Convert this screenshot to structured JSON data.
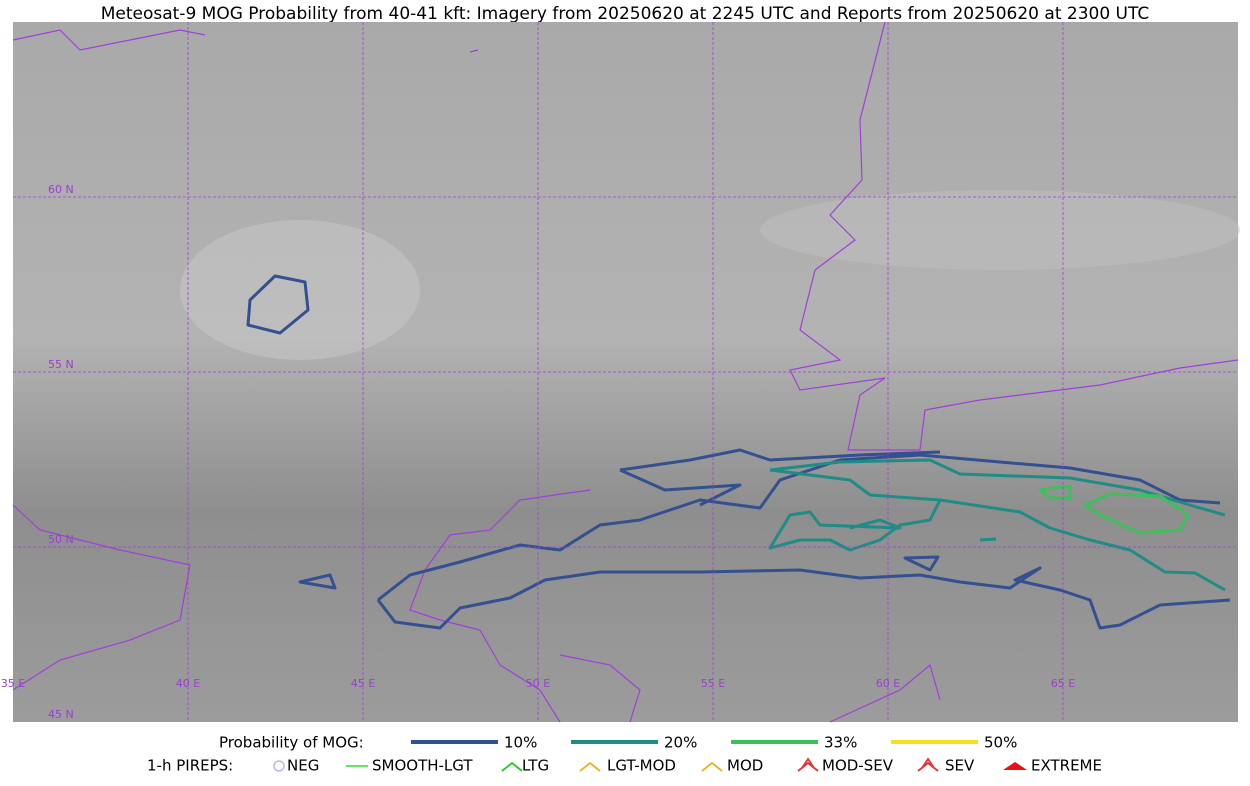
{
  "title": "Meteosat-9 MOG Probability from 40-41 kft: Imagery from 20250620 at 2245 UTC and Reports from 20250620 at 2300 UTC",
  "map": {
    "latitude_labels": [
      "60 N",
      "55 N",
      "50 N",
      "45 N"
    ],
    "longitude_labels": [
      "35 E",
      "40 E",
      "45 E",
      "50 E",
      "55 E",
      "60 E",
      "65 E"
    ]
  },
  "legend": {
    "mog_title": "Probability of MOG:",
    "mog_items": [
      {
        "label": "10%",
        "color": "#34508f"
      },
      {
        "label": "20%",
        "color": "#1f8c85"
      },
      {
        "label": "33%",
        "color": "#3cc05a"
      },
      {
        "label": "50%",
        "color": "#f4e01c"
      }
    ],
    "pirep_title": "1-h PIREPS:",
    "pirep_items": [
      {
        "label": "NEG",
        "color": "#b8b8f0"
      },
      {
        "label": "SMOOTH-LGT",
        "color": "#33dd33"
      },
      {
        "label": "LTG",
        "color": "#22cc22"
      },
      {
        "label": "LGT-MOD",
        "color": "#f4b020"
      },
      {
        "label": "MOD",
        "color": "#f4b020"
      },
      {
        "label": "MOD-SEV",
        "color": "#e83030"
      },
      {
        "label": "SEV",
        "color": "#e83030"
      },
      {
        "label": "EXTREME",
        "color": "#e81010"
      }
    ]
  }
}
